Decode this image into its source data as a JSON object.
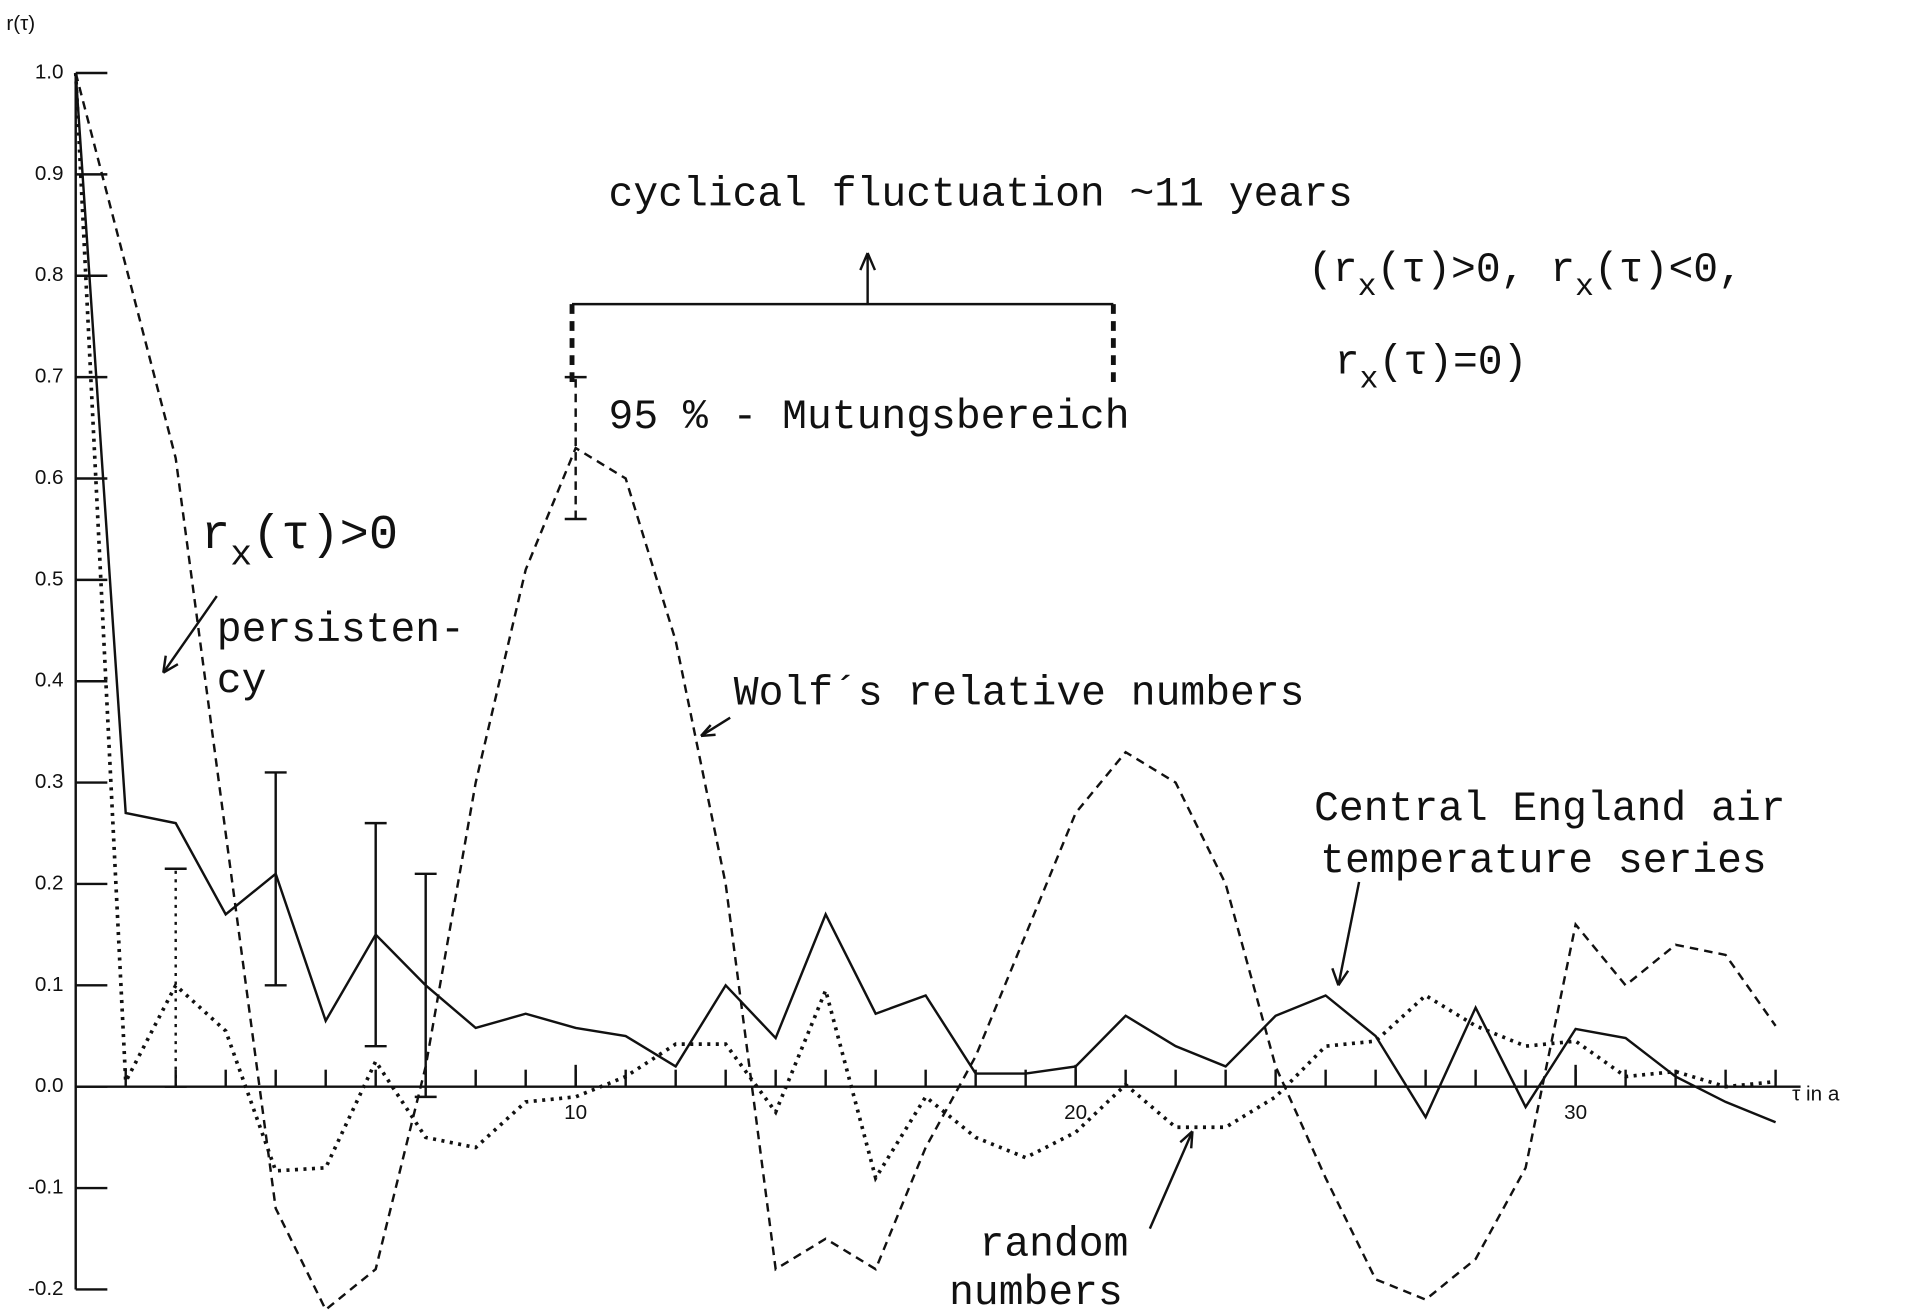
{
  "chart_data": {
    "type": "line",
    "ylabel": "r(τ)",
    "xlabel": "τ in a",
    "xlim": [
      0,
      34.5
    ],
    "ylim": [
      -0.2,
      1.0
    ],
    "xticks": [
      10,
      20,
      30
    ],
    "yticks": [
      {
        "value": 1.0,
        "label": "1.0"
      },
      0.9,
      0.8,
      0.7,
      0.6,
      0.5,
      0.4,
      0.3,
      0.2,
      0.1,
      {
        "value": 0.0,
        "label": "0.0"
      },
      -0.1,
      -0.2
    ],
    "x": [
      0,
      1,
      2,
      3,
      4,
      5,
      6,
      7,
      8,
      9,
      10,
      11,
      12,
      13,
      14,
      15,
      16,
      17,
      18,
      19,
      20,
      21,
      22,
      23,
      24,
      25,
      26,
      27,
      28,
      29,
      30,
      31,
      32,
      33,
      34
    ],
    "series": [
      {
        "label_lines": [
          "Wolf´s relative numbers"
        ],
        "color": "#111",
        "style": "dashed",
        "values": [
          1.0,
          0.81,
          0.62,
          0.25,
          -0.12,
          -0.22,
          -0.18,
          0.02,
          0.3,
          0.51,
          0.63,
          0.6,
          0.44,
          0.2,
          -0.18,
          -0.15,
          -0.18,
          -0.06,
          0.03,
          0.15,
          0.27,
          0.33,
          0.3,
          0.2,
          0.02,
          -0.09,
          -0.19,
          -0.21,
          -0.17,
          -0.08,
          0.16,
          0.1,
          0.14,
          0.13,
          0.06
        ],
        "error_bars": [
          {
            "x": 10,
            "low": 0.56,
            "high": 0.7
          }
        ]
      },
      {
        "label_lines": [
          "Central England air",
          "temperature series"
        ],
        "color": "#111",
        "style": "solid",
        "values": [
          1.0,
          0.27,
          0.26,
          0.17,
          0.21,
          0.065,
          0.15,
          0.1,
          0.058,
          0.072,
          0.058,
          0.05,
          0.02,
          0.1,
          0.048,
          0.17,
          0.072,
          0.09,
          0.013,
          0.013,
          0.02,
          0.07,
          0.04,
          0.02,
          0.07,
          0.09,
          0.05,
          -0.03,
          0.078,
          -0.02,
          0.057,
          0.048,
          0.01,
          -0.015,
          -0.035
        ],
        "error_bars": [
          {
            "x": 4,
            "low": 0.1,
            "high": 0.31
          },
          {
            "x": 6,
            "low": 0.04,
            "high": 0.26
          },
          {
            "x": 7,
            "low": -0.01,
            "high": 0.21
          }
        ]
      },
      {
        "label_lines": [
          "random",
          "numbers"
        ],
        "color": "#111",
        "style": "dotted",
        "values": [
          1.0,
          0.005,
          0.1,
          0.055,
          -0.083,
          -0.08,
          0.025,
          -0.05,
          -0.06,
          -0.015,
          -0.01,
          0.01,
          0.042,
          0.042,
          -0.025,
          0.095,
          -0.09,
          -0.01,
          -0.05,
          -0.07,
          -0.045,
          0.002,
          -0.04,
          -0.04,
          -0.01,
          0.04,
          0.045,
          0.09,
          0.06,
          0.04,
          0.045,
          0.01,
          0.015,
          0.0,
          0.005
        ],
        "error_bars": [
          {
            "x": 2,
            "low": 0.0,
            "high": 0.215
          }
        ]
      }
    ],
    "annotations": {
      "cycle": "cyclical fluctuation ~11 years",
      "cases1": [
        "(r",
        "x",
        "(τ)>0, r",
        "x",
        "(τ)<0,"
      ],
      "cases2": [
        "r",
        "x",
        "(τ)=0)"
      ],
      "range": "95 % - Mutungsbereich",
      "positive": [
        "r",
        "x",
        "(τ)>0"
      ],
      "persistency": [
        "persisten-",
        "cy"
      ]
    }
  }
}
